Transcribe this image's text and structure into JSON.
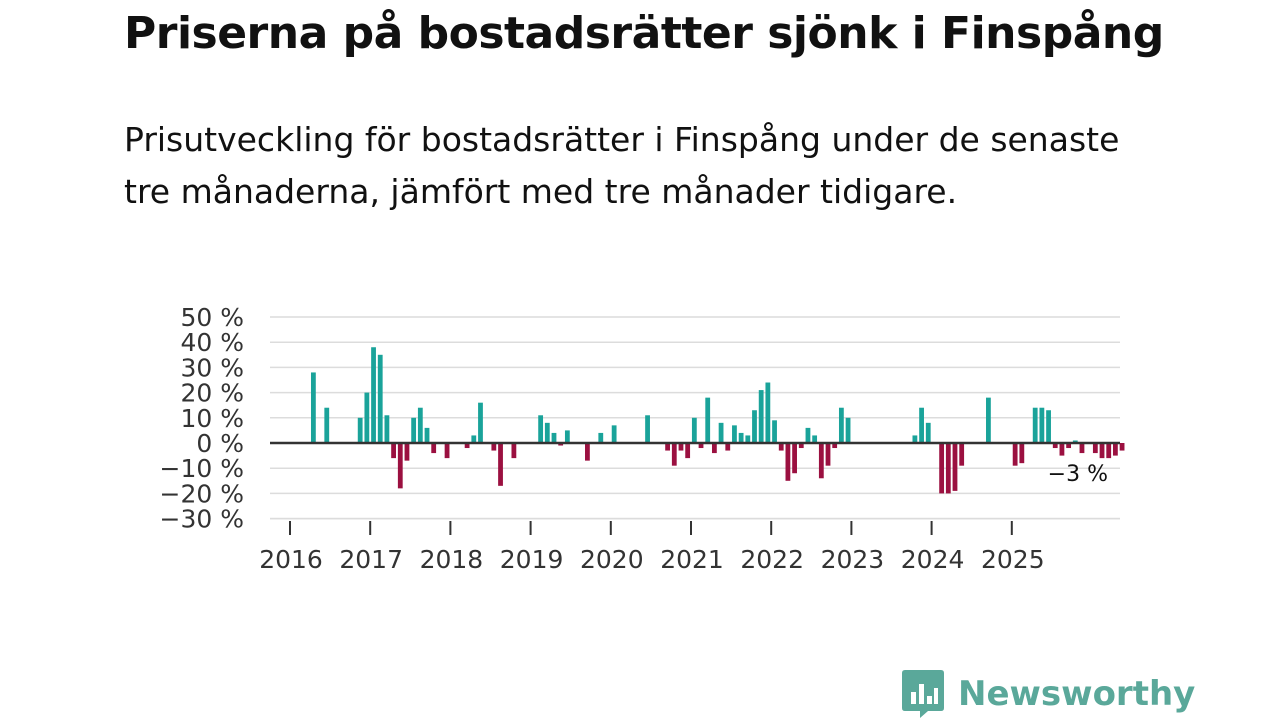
{
  "title": "Priserna på bostadsrätter sjönk i Finspång",
  "subtitle": "Prisutveckling för bostadsrätter i Finspång under de senaste tre månaderna, jämfört med tre månader tidigare.",
  "brand": {
    "name": "Newsworthy",
    "icon": "bar-chart-bubble-icon",
    "color": "#5aa89a"
  },
  "colors": {
    "positive": "#1aa39a",
    "negative": "#9b1040",
    "zero_line": "#333333",
    "grid": "#dcdcdc"
  },
  "chart_data": {
    "type": "bar",
    "title": "",
    "xlabel": "",
    "ylabel": "",
    "ylim": [
      -30,
      50
    ],
    "yticks": [
      50,
      40,
      30,
      20,
      10,
      0,
      -10,
      -20,
      -30
    ],
    "ytick_labels": [
      "50 %",
      "40 %",
      "30 %",
      "20 %",
      "10 %",
      "0 %",
      "−10 %",
      "−20 %",
      "−30 %"
    ],
    "xticks": [
      "2016",
      "2017",
      "2018",
      "2019",
      "2020",
      "2021",
      "2022",
      "2023",
      "2024",
      "2025"
    ],
    "start": "2016-01",
    "period": "month",
    "values": [
      null,
      null,
      null,
      28,
      null,
      14,
      null,
      null,
      null,
      null,
      10,
      20,
      38,
      35,
      11,
      -6,
      -18,
      -7,
      10,
      14,
      6,
      -4,
      null,
      -6,
      null,
      null,
      -2,
      3,
      16,
      null,
      -3,
      -17,
      null,
      -6,
      null,
      null,
      null,
      11,
      8,
      4,
      -1,
      5,
      null,
      null,
      -7,
      null,
      4,
      null,
      7,
      null,
      null,
      null,
      null,
      11,
      null,
      null,
      -3,
      -9,
      -3,
      -6,
      10,
      -2,
      18,
      -4,
      8,
      -3,
      7,
      4,
      3,
      13,
      21,
      24,
      9,
      -3,
      -15,
      -12,
      -2,
      6,
      3,
      -14,
      -9,
      -2,
      14,
      10,
      null,
      null,
      null,
      null,
      null,
      null,
      null,
      null,
      null,
      3,
      14,
      8,
      null,
      -20,
      -20,
      -19,
      -9,
      null,
      null,
      null,
      18,
      null,
      null,
      null,
      -9,
      -8,
      null,
      14,
      14,
      13,
      -2,
      -5,
      -2,
      1,
      -4,
      null,
      -4,
      -6,
      -6,
      -5,
      -3
    ],
    "last_value_label": "−3 %"
  }
}
